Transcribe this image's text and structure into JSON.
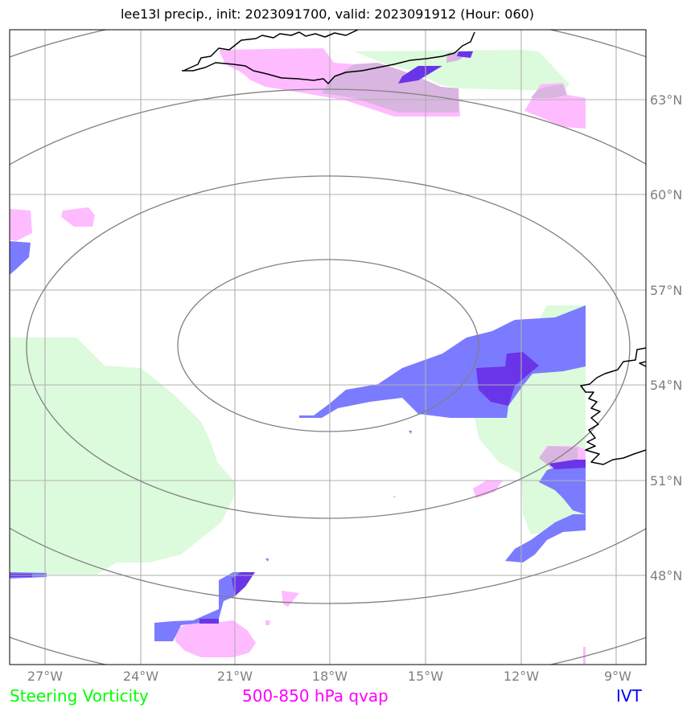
{
  "title": "lee13l precip., init: 2023091700, valid: 2023091912 (Hour: 060)",
  "lon_labels": [
    "27°W",
    "24°W",
    "21°W",
    "18°W",
    "15°W",
    "12°W",
    "9°W"
  ],
  "lat_labels": [
    "63°N",
    "60°N",
    "57°N",
    "54°N",
    "51°N",
    "48°N"
  ],
  "legend": {
    "steering": {
      "label": "Steering Vorticity",
      "color": "#00ff00"
    },
    "qvap": {
      "label": "500-850 hPa qvap",
      "color": "#ff00ff"
    },
    "ivt": {
      "label": "IVT",
      "color": "#0000ff"
    }
  },
  "colors": {
    "steering_fill": "#dcfadc",
    "qvap_fill": "#ffbbff",
    "ivt_fill": "#7b7bff",
    "ivt_strong": "#6a35e8",
    "overlap": "#d9b5e1",
    "gridline": "#b0b0b0",
    "contour": "#808080",
    "coast": "#000000"
  }
}
